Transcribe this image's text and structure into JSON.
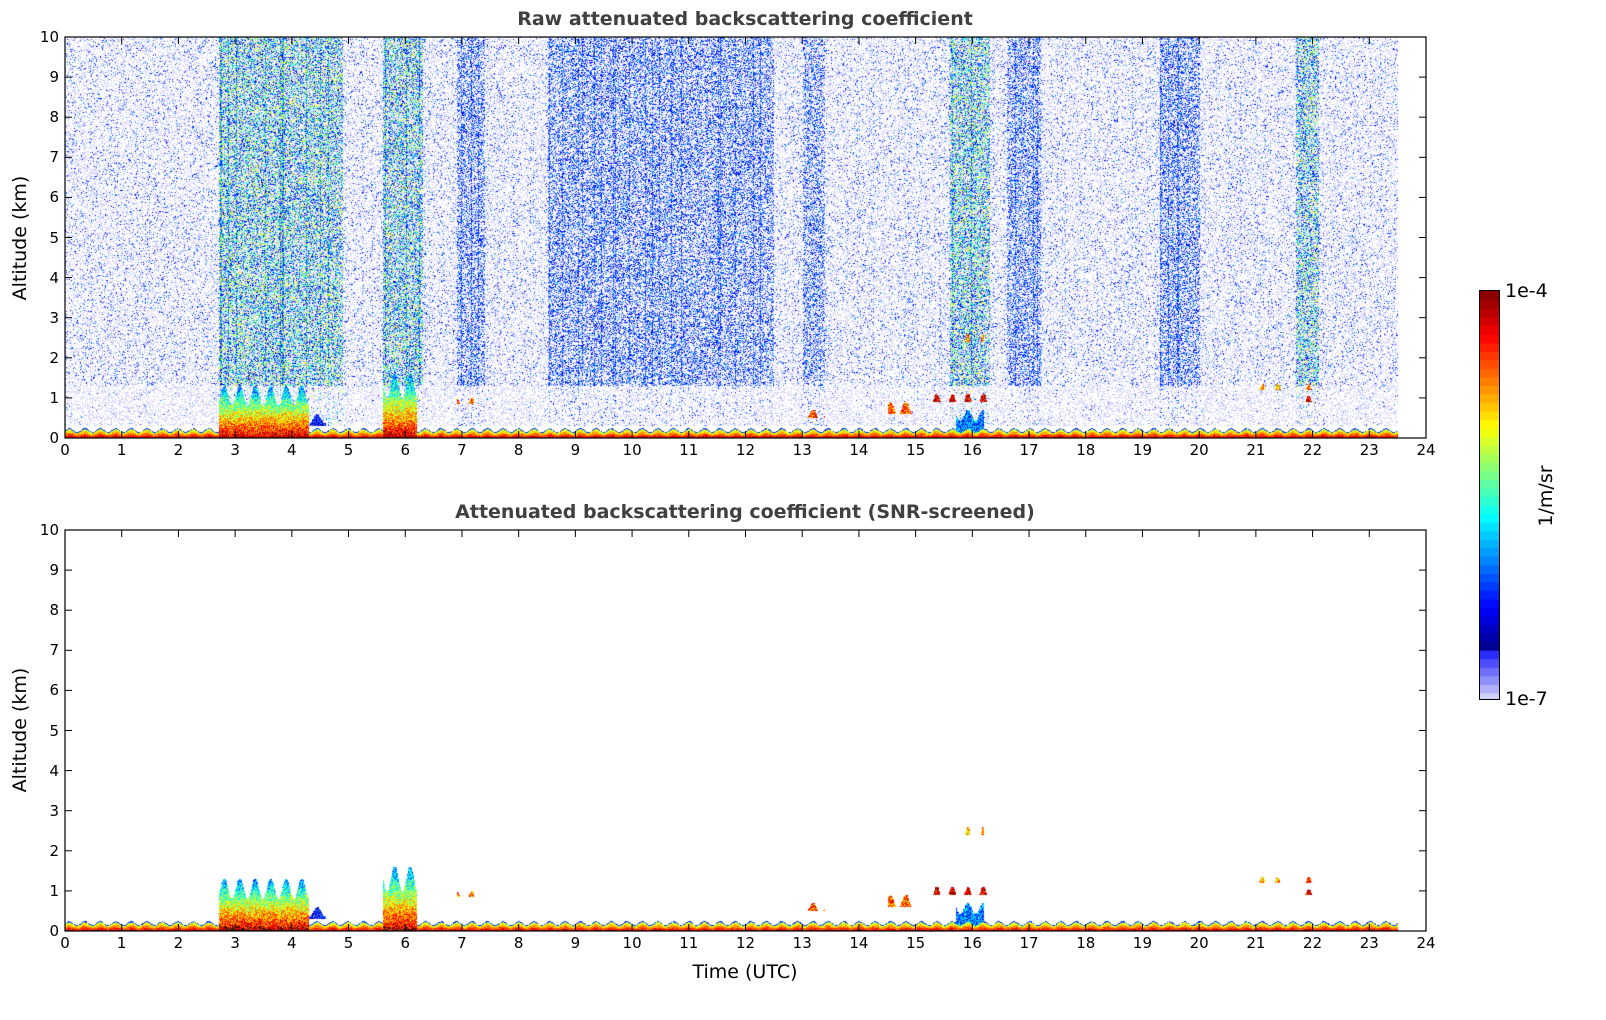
{
  "chart_data": [
    {
      "type": "heatmap",
      "title": "Raw attenuated backscattering coefficient",
      "xlabel": "",
      "ylabel": "Altitude (km)",
      "xlim": [
        0,
        24
      ],
      "ylim": [
        0,
        10
      ],
      "xticks": [
        "0",
        "1",
        "2",
        "3",
        "4",
        "5",
        "6",
        "7",
        "8",
        "9",
        "10",
        "11",
        "12",
        "13",
        "14",
        "15",
        "16",
        "17",
        "18",
        "19",
        "20",
        "21",
        "22",
        "23",
        "24"
      ],
      "yticks": [
        "0",
        "1",
        "2",
        "3",
        "4",
        "5",
        "6",
        "7",
        "8",
        "9",
        "10"
      ],
      "data_time_range": [
        0,
        23.5
      ],
      "screened": false,
      "noise_bands": [
        {
          "t": [
            2.7,
            4.9
          ],
          "level": "high"
        },
        {
          "t": [
            5.6,
            6.3
          ],
          "level": "high"
        },
        {
          "t": [
            6.9,
            7.4
          ],
          "level": "medium"
        },
        {
          "t": [
            8.5,
            12.5
          ],
          "level": "medium"
        },
        {
          "t": [
            13.0,
            13.4
          ],
          "level": "medium"
        },
        {
          "t": [
            15.6,
            16.3
          ],
          "level": "high"
        },
        {
          "t": [
            16.6,
            17.2
          ],
          "level": "medium"
        },
        {
          "t": [
            19.3,
            20.0
          ],
          "level": "medium"
        },
        {
          "t": [
            21.7,
            22.1
          ],
          "level": "high"
        }
      ],
      "layers": [
        {
          "t": [
            0,
            23.5
          ],
          "z": [
            0,
            0.25
          ],
          "log10_beta": -4.1
        },
        {
          "t": [
            2.7,
            4.3
          ],
          "z": [
            0,
            1.3
          ],
          "log10_beta": -5.0
        },
        {
          "t": [
            4.0,
            4.6
          ],
          "z": [
            0.3,
            0.6
          ],
          "log10_beta": -6.4
        },
        {
          "t": [
            5.6,
            6.2
          ],
          "z": [
            0,
            1.6
          ],
          "log10_beta": -5.0
        },
        {
          "t": [
            6.9,
            7.2
          ],
          "z": [
            0.85,
            1.0
          ],
          "log10_beta": -4.6
        },
        {
          "t": [
            13.0,
            13.4
          ],
          "z": [
            0.5,
            0.7
          ],
          "log10_beta": -4.5
        },
        {
          "t": [
            14.5,
            15.0
          ],
          "z": [
            0.6,
            0.9
          ],
          "log10_beta": -4.6
        },
        {
          "t": [
            15.2,
            16.3
          ],
          "z": [
            0.9,
            1.1
          ],
          "log10_beta": -4.2
        },
        {
          "t": [
            15.7,
            16.2
          ],
          "z": [
            0.1,
            0.7
          ],
          "log10_beta": -6.0
        },
        {
          "t": [
            15.8,
            16.2
          ],
          "z": [
            2.4,
            2.6
          ],
          "log10_beta": -4.8
        },
        {
          "t": [
            21.0,
            21.5
          ],
          "z": [
            1.2,
            1.35
          ],
          "log10_beta": -4.8
        },
        {
          "t": [
            21.8,
            22.1
          ],
          "z": [
            1.2,
            1.35
          ],
          "log10_beta": -4.6
        },
        {
          "t": [
            21.8,
            22.1
          ],
          "z": [
            0.9,
            1.05
          ],
          "log10_beta": -4.2
        }
      ]
    },
    {
      "type": "heatmap",
      "title": "Attenuated backscattering coefficient (SNR-screened)",
      "xlabel": "Time (UTC)",
      "ylabel": "Altitude (km)",
      "xlim": [
        0,
        24
      ],
      "ylim": [
        0,
        10
      ],
      "xticks": [
        "0",
        "1",
        "2",
        "3",
        "4",
        "5",
        "6",
        "7",
        "8",
        "9",
        "10",
        "11",
        "12",
        "13",
        "14",
        "15",
        "16",
        "17",
        "18",
        "19",
        "20",
        "21",
        "22",
        "23",
        "24"
      ],
      "yticks": [
        "0",
        "1",
        "2",
        "3",
        "4",
        "5",
        "6",
        "7",
        "8",
        "9",
        "10"
      ],
      "data_time_range": [
        0,
        23.5
      ],
      "screened": true
    }
  ],
  "colorbar": {
    "label": "1/m/sr",
    "min_label": "1e-7",
    "max_label": "1e-4",
    "log10_range": [
      -7,
      -4
    ],
    "colormap": "jet"
  }
}
